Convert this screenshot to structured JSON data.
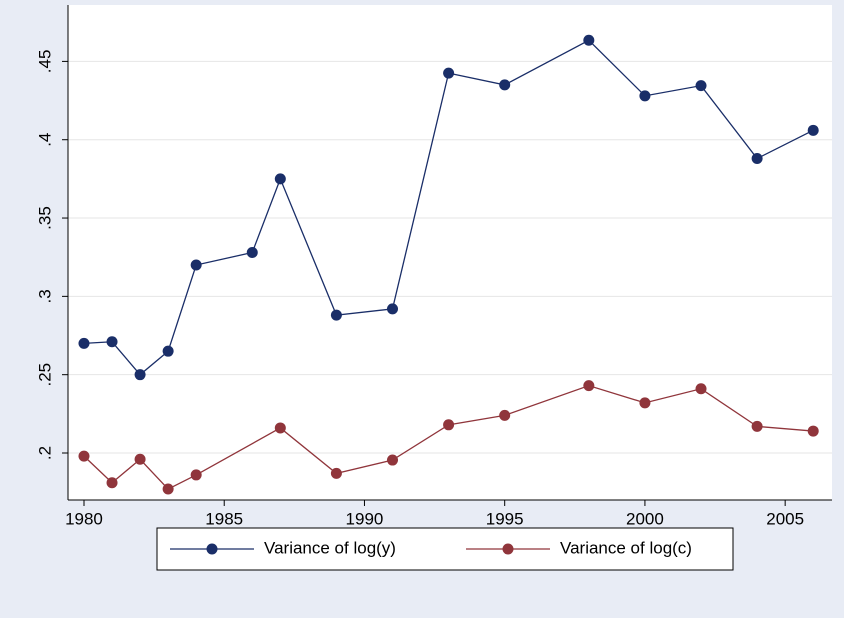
{
  "chart_data": {
    "type": "line",
    "xlim": [
      1979.43,
      2006.67
    ],
    "xticks": [
      1980,
      1985,
      1990,
      1995,
      2000,
      2005
    ],
    "ylim": [
      0.17,
      0.486
    ],
    "yticks": [
      {
        "value": 0.2,
        "label": ".2"
      },
      {
        "value": 0.25,
        "label": ".25"
      },
      {
        "value": 0.3,
        "label": ".3"
      },
      {
        "value": 0.35,
        "label": ".35"
      },
      {
        "value": 0.4,
        "label": ".4"
      },
      {
        "value": 0.45,
        "label": ".45"
      }
    ],
    "grid": true,
    "legend": "bottom",
    "series": [
      {
        "name": "Variance of log(y)",
        "color": "#1a2e68",
        "x": [
          1980,
          1981,
          1982,
          1983,
          1984,
          1986,
          1987,
          1989,
          1991,
          1993,
          1995,
          1998,
          2000,
          2002,
          2004,
          2006
        ],
        "values": [
          0.27,
          0.271,
          0.25,
          0.265,
          0.32,
          0.328,
          0.375,
          0.288,
          0.292,
          0.4425,
          0.435,
          0.4635,
          0.428,
          0.4345,
          0.388,
          0.406
        ]
      },
      {
        "name": "Variance of log(c)",
        "color": "#90353b",
        "x": [
          1980,
          1981,
          1982,
          1983,
          1984,
          1987,
          1989,
          1991,
          1993,
          1995,
          1998,
          2000,
          2002,
          2004,
          2006
        ],
        "values": [
          0.198,
          0.181,
          0.196,
          0.177,
          0.186,
          0.216,
          0.187,
          0.1955,
          0.218,
          0.224,
          0.243,
          0.232,
          0.241,
          0.217,
          0.214
        ]
      }
    ]
  }
}
